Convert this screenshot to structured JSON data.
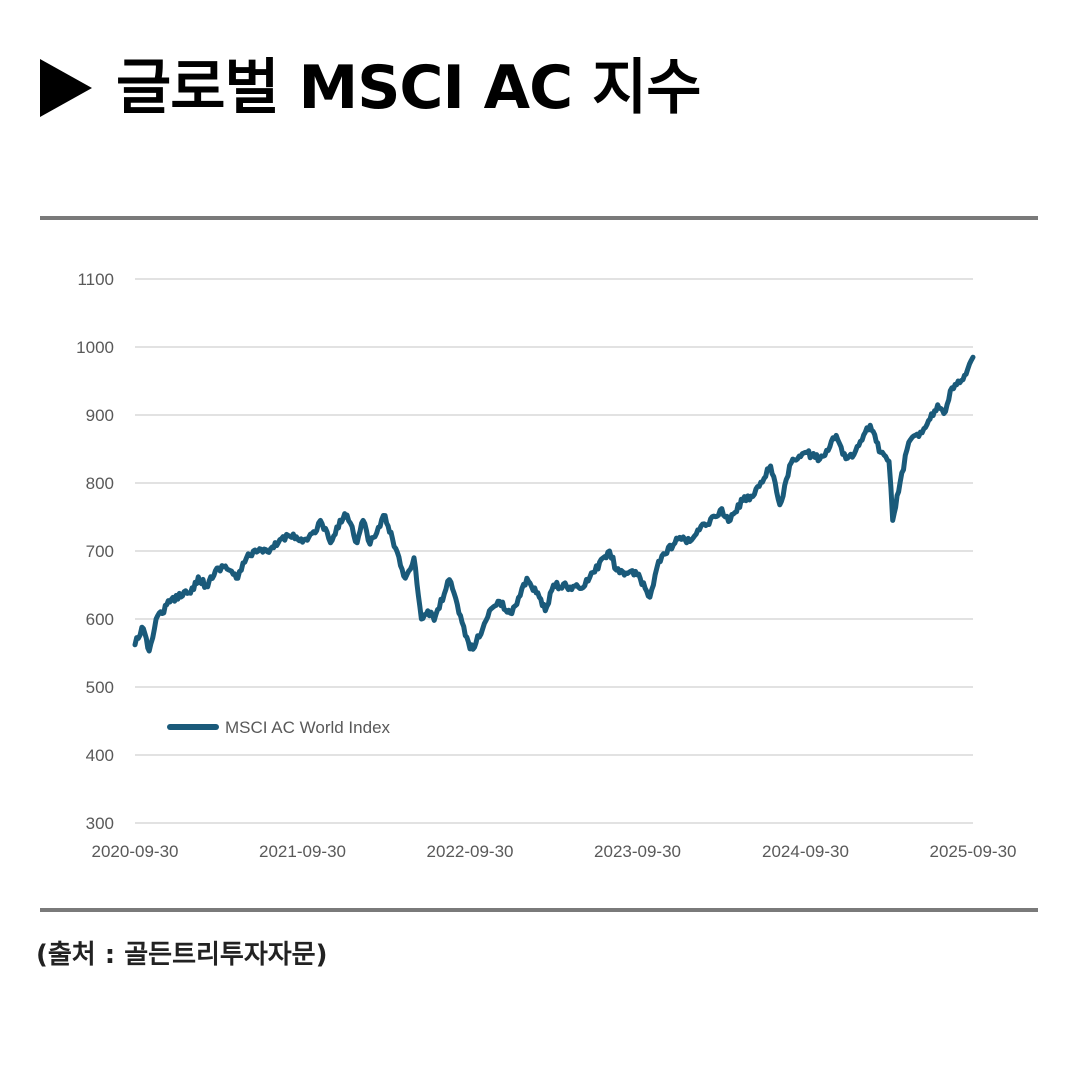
{
  "header": {
    "title": "글로벌 MSCI AC 지수"
  },
  "footer": {
    "source": "(출처 : 골든트리투자자문)"
  },
  "colors": {
    "series": "#1a5a7a",
    "grid": "#d9d9d9",
    "rule": "#7a7a7a"
  },
  "chart_data": {
    "type": "line",
    "ylim": [
      300,
      1100
    ],
    "y_ticks": [
      300,
      400,
      500,
      600,
      700,
      800,
      900,
      1000,
      1100
    ],
    "x_range": [
      "2020-09-30",
      "2025-09-30"
    ],
    "x_ticks": [
      "2020-09-30",
      "2021-09-30",
      "2022-09-30",
      "2023-09-30",
      "2024-09-30",
      "2025-09-30"
    ],
    "grid": "horizontal",
    "legend_position": "lower-left",
    "series": [
      {
        "name": "MSCI AC World Index",
        "points": [
          [
            "2020-09-30",
            562
          ],
          [
            "2020-10-15",
            588
          ],
          [
            "2020-10-31",
            553
          ],
          [
            "2020-11-15",
            600
          ],
          [
            "2020-12-15",
            625
          ],
          [
            "2021-01-15",
            640
          ],
          [
            "2021-01-29",
            638
          ],
          [
            "2021-02-15",
            662
          ],
          [
            "2021-03-04",
            648
          ],
          [
            "2021-03-31",
            675
          ],
          [
            "2021-04-15",
            678
          ],
          [
            "2021-05-12",
            660
          ],
          [
            "2021-05-31",
            690
          ],
          [
            "2021-06-15",
            700
          ],
          [
            "2021-07-19",
            698
          ],
          [
            "2021-08-15",
            718
          ],
          [
            "2021-09-10",
            725
          ],
          [
            "2021-09-30",
            713
          ],
          [
            "2021-10-31",
            730
          ],
          [
            "2021-11-08",
            745
          ],
          [
            "2021-11-30",
            712
          ],
          [
            "2021-12-31",
            755
          ],
          [
            "2022-01-05",
            753
          ],
          [
            "2022-01-27",
            712
          ],
          [
            "2022-02-09",
            745
          ],
          [
            "2022-02-24",
            710
          ],
          [
            "2022-03-29",
            752
          ],
          [
            "2022-04-14",
            718
          ],
          [
            "2022-05-12",
            660
          ],
          [
            "2022-05-31",
            690
          ],
          [
            "2022-06-16",
            600
          ],
          [
            "2022-06-30",
            612
          ],
          [
            "2022-07-14",
            598
          ],
          [
            "2022-08-16",
            658
          ],
          [
            "2022-09-30",
            556
          ],
          [
            "2022-10-13",
            565
          ],
          [
            "2022-11-15",
            615
          ],
          [
            "2022-11-30",
            626
          ],
          [
            "2022-12-30",
            608
          ],
          [
            "2023-02-01",
            660
          ],
          [
            "2023-02-28",
            632
          ],
          [
            "2023-03-13",
            612
          ],
          [
            "2023-03-31",
            650
          ],
          [
            "2023-05-31",
            645
          ],
          [
            "2023-07-31",
            700
          ],
          [
            "2023-08-15",
            672
          ],
          [
            "2023-09-29",
            665
          ],
          [
            "2023-10-27",
            632
          ],
          [
            "2023-11-15",
            685
          ],
          [
            "2023-12-31",
            720
          ],
          [
            "2024-01-15",
            712
          ],
          [
            "2024-03-28",
            760
          ],
          [
            "2024-04-19",
            745
          ],
          [
            "2024-05-20",
            780
          ],
          [
            "2024-05-31",
            775
          ],
          [
            "2024-07-16",
            825
          ],
          [
            "2024-08-05",
            768
          ],
          [
            "2024-08-30",
            830
          ],
          [
            "2024-09-30",
            845
          ],
          [
            "2024-10-31",
            835
          ],
          [
            "2024-11-15",
            848
          ],
          [
            "2024-12-06",
            870
          ],
          [
            "2024-12-20",
            842
          ],
          [
            "2025-01-10",
            838
          ],
          [
            "2025-02-18",
            885
          ],
          [
            "2025-03-13",
            845
          ],
          [
            "2025-03-31",
            832
          ],
          [
            "2025-04-08",
            745
          ],
          [
            "2025-04-24",
            800
          ],
          [
            "2025-05-13",
            860
          ],
          [
            "2025-06-15",
            880
          ],
          [
            "2025-07-15",
            915
          ],
          [
            "2025-08-01",
            905
          ],
          [
            "2025-08-15",
            940
          ],
          [
            "2025-09-15",
            960
          ],
          [
            "2025-09-30",
            985
          ]
        ]
      }
    ]
  }
}
